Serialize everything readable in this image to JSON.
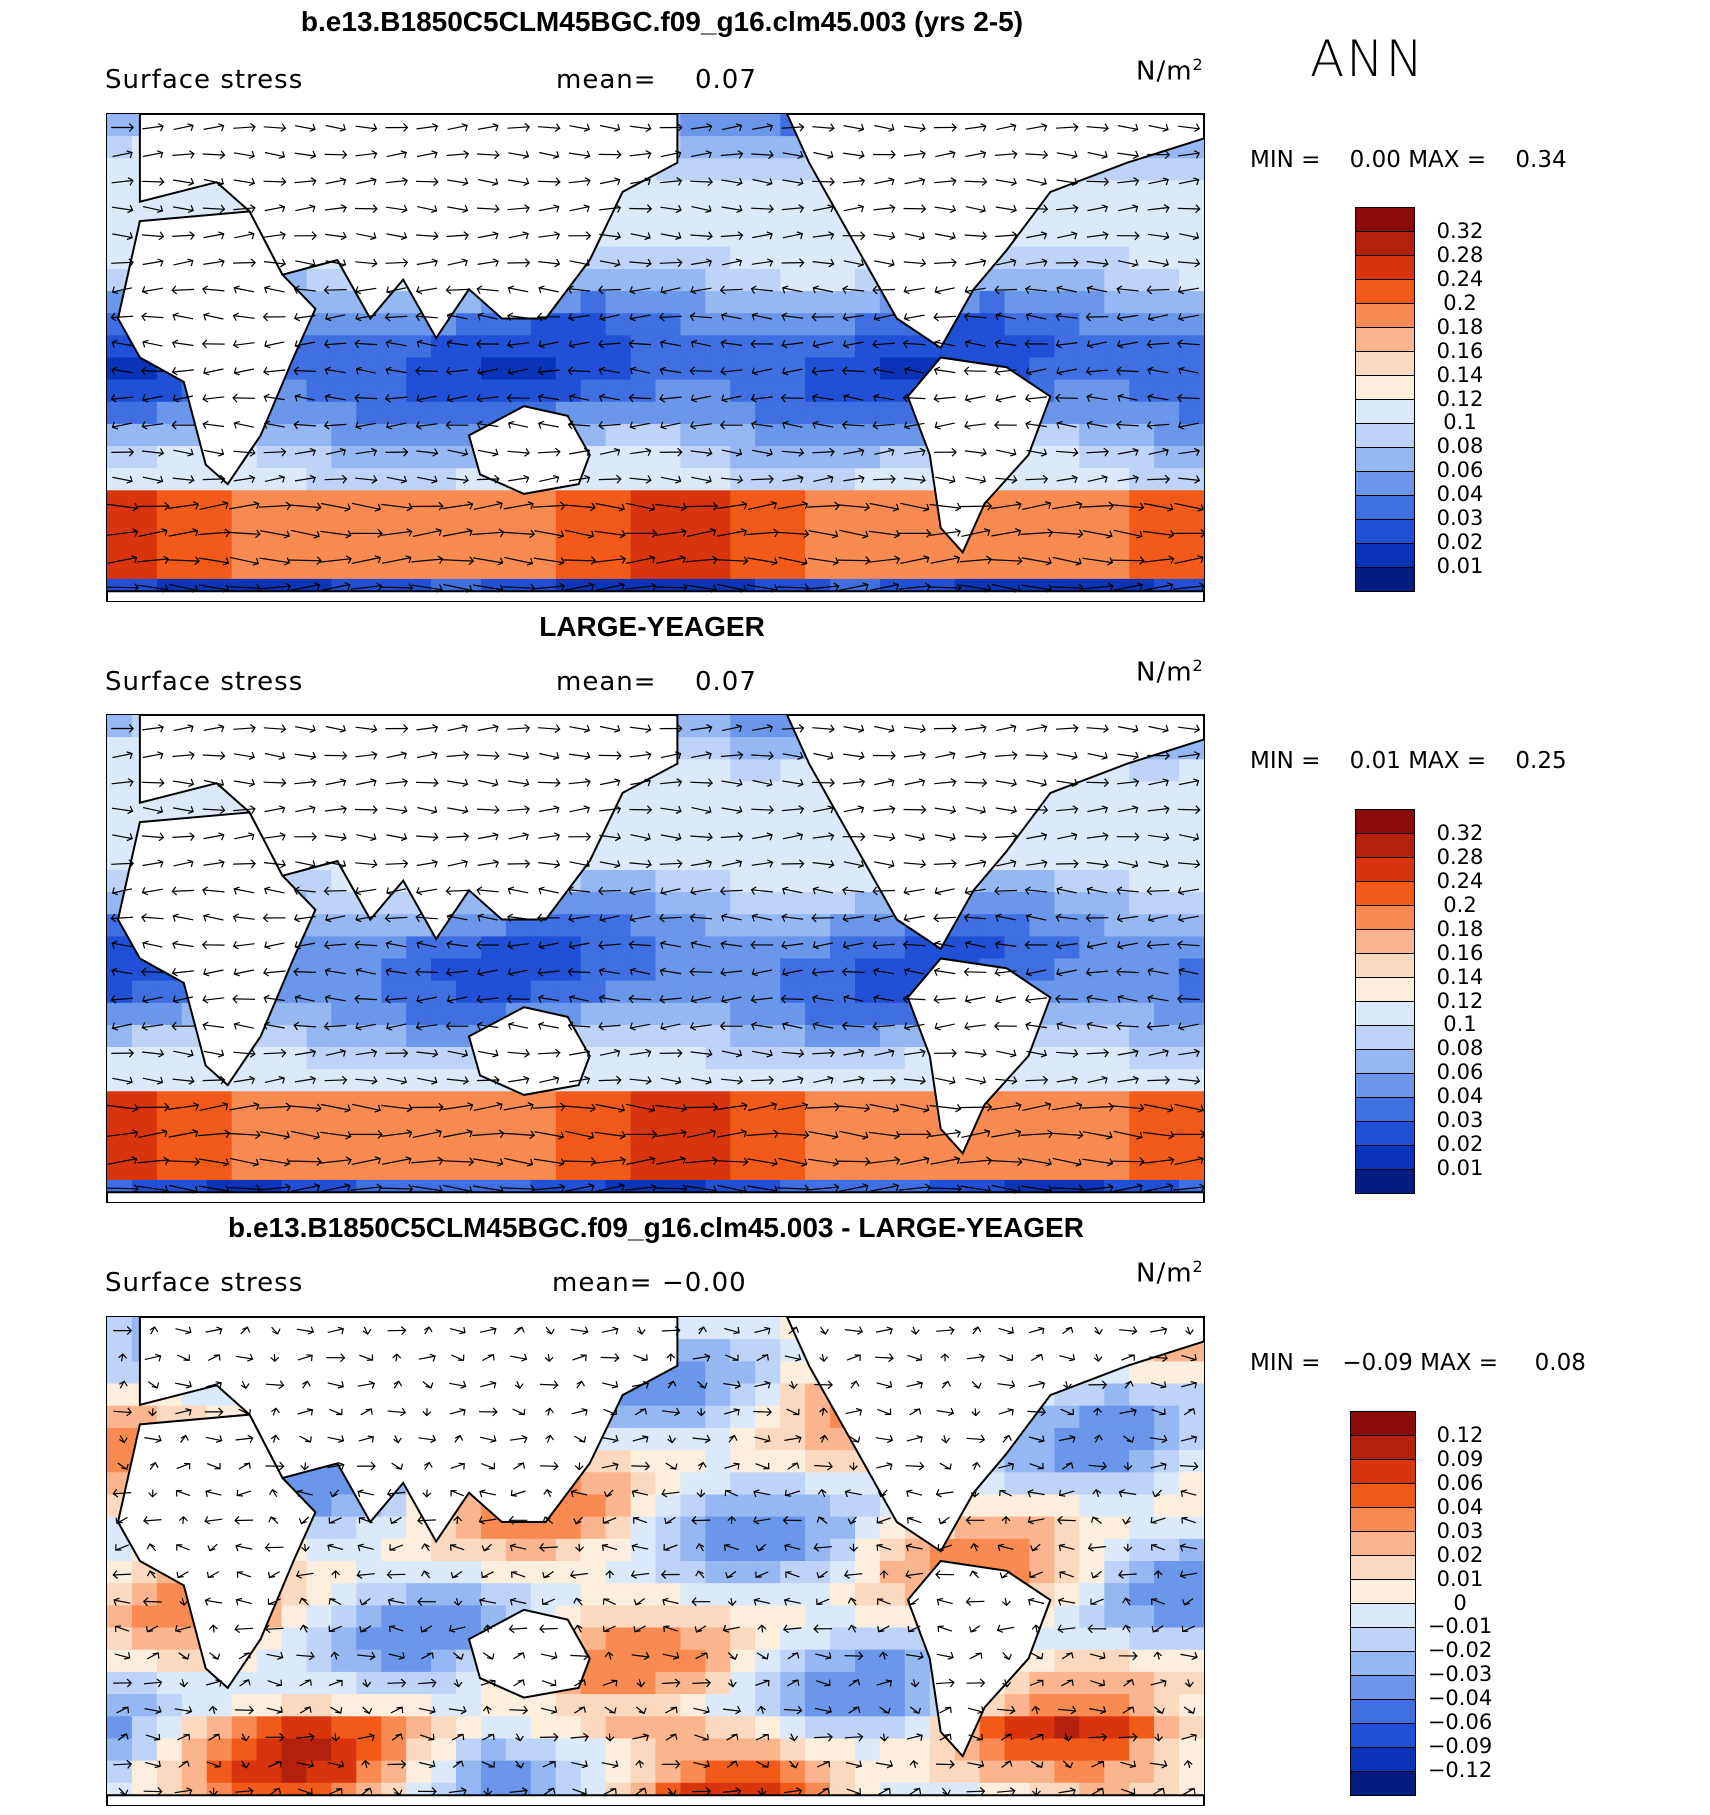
{
  "season": "ANN",
  "panels": [
    {
      "title": "b.e13.B1850C5CLM45BGC.f09_g16.clm45.003 (yrs 2-5)",
      "variable": "Surface stress",
      "mean_label": "mean=",
      "mean_value": "0.07",
      "units": "N/m",
      "units_sup": "2",
      "min_label": "MIN =",
      "min_value": "0.00",
      "max_label": "MAX =",
      "max_value": "0.34",
      "colorbar_colors": [
        "#8b0a0a",
        "#b3200c",
        "#d8350e",
        "#f25a1a",
        "#f98a52",
        "#fbb58e",
        "#fbd9bf",
        "#fbeedd",
        "#dce9fa",
        "#bdd3f7",
        "#95b7f2",
        "#6b96ea",
        "#3f6fe0",
        "#1f50d6",
        "#0a34b8",
        "#031d80"
      ],
      "colorbar_ticks": [
        "0.32",
        "0.28",
        "0.24",
        "0.2",
        "0.18",
        "0.16",
        "0.14",
        "0.12",
        "0.1",
        "0.08",
        "0.06",
        "0.04",
        "0.03",
        "0.02",
        "0.01"
      ],
      "map_id": "map1"
    },
    {
      "title": "LARGE-YEAGER",
      "variable": "Surface stress",
      "mean_label": "mean=",
      "mean_value": "0.07",
      "units": "N/m",
      "units_sup": "2",
      "min_label": "MIN =",
      "min_value": "0.01",
      "max_label": "MAX =",
      "max_value": "0.25",
      "colorbar_colors": [
        "#8b0a0a",
        "#b3200c",
        "#d8350e",
        "#f25a1a",
        "#f98a52",
        "#fbb58e",
        "#fbd9bf",
        "#fbeedd",
        "#dce9fa",
        "#bdd3f7",
        "#95b7f2",
        "#6b96ea",
        "#3f6fe0",
        "#1f50d6",
        "#0a34b8",
        "#031d80"
      ],
      "colorbar_ticks": [
        "0.32",
        "0.28",
        "0.24",
        "0.2",
        "0.18",
        "0.16",
        "0.14",
        "0.12",
        "0.1",
        "0.08",
        "0.06",
        "0.04",
        "0.03",
        "0.02",
        "0.01"
      ],
      "map_id": "map2"
    },
    {
      "title": "b.e13.B1850C5CLM45BGC.f09_g16.clm45.003 - LARGE-YEAGER",
      "variable": "Surface stress",
      "mean_label": "mean=",
      "mean_value": "−0.00",
      "units": "N/m",
      "units_sup": "2",
      "min_label": "MIN =",
      "min_value": "−0.09",
      "max_label": "MAX =",
      "max_value": "0.08",
      "colorbar_colors": [
        "#8b0a0a",
        "#b3200c",
        "#d8350e",
        "#f25a1a",
        "#f98a52",
        "#fbb58e",
        "#fbd9bf",
        "#fbeedd",
        "#dce9fa",
        "#bdd3f7",
        "#95b7f2",
        "#6b96ea",
        "#3f6fe0",
        "#1f50d6",
        "#0a34b8",
        "#031d80"
      ],
      "colorbar_ticks": [
        "0.12",
        "0.09",
        "0.06",
        "0.04",
        "0.03",
        "0.02",
        "0.01",
        "0",
        "−0.01",
        "−0.02",
        "−0.03",
        "−0.04",
        "−0.06",
        "−0.09",
        "−0.12"
      ],
      "map_id": "map3"
    }
  ]
}
